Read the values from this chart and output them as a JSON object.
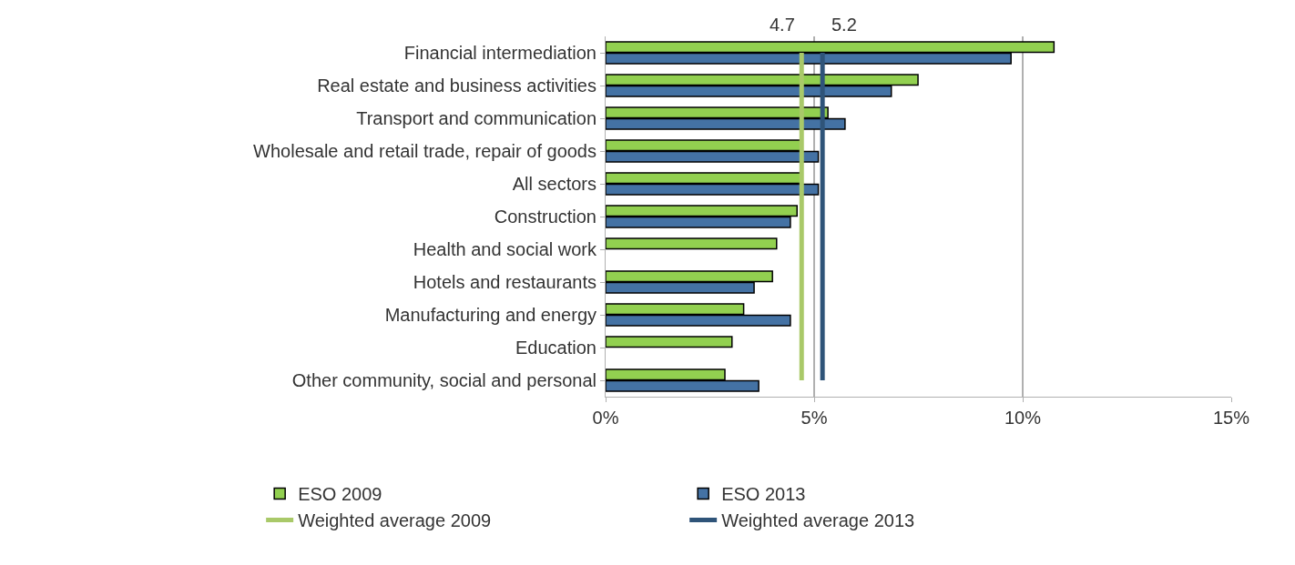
{
  "chart_data": {
    "type": "bar",
    "orientation": "horizontal",
    "categories": [
      "Financial intermediation",
      "Real estate and business activities",
      "Transport and communication",
      "Wholesale and retail trade, repair of goods",
      "All sectors",
      "Construction",
      "Health and social work",
      "Hotels and restaurants",
      "Manufacturing and energy",
      "Education",
      "Other community, social and personal"
    ],
    "series": [
      {
        "name": "ESO 2009",
        "color": "#92d050",
        "values": [
          10.75,
          7.49,
          5.33,
          4.7,
          4.7,
          4.59,
          4.1,
          4.0,
          3.31,
          3.03,
          2.86
        ]
      },
      {
        "name": "ESO 2013",
        "color": "#4472a4",
        "values": [
          9.72,
          6.85,
          5.74,
          5.1,
          5.1,
          4.43,
          null,
          3.56,
          4.43,
          null,
          3.67
        ]
      },
      {
        "name": "Weighted average 2009",
        "type": "line",
        "color": "#a9c969",
        "values": [
          4.7,
          4.7,
          4.7,
          4.7,
          4.7,
          4.7,
          4.7,
          4.7,
          4.7,
          4.7,
          4.7
        ]
      },
      {
        "name": "Weighted average 2013",
        "type": "line",
        "color": "#2f5479",
        "values": [
          5.2,
          5.2,
          5.2,
          5.2,
          5.2,
          5.2,
          5.2,
          5.2,
          5.2,
          5.2,
          5.2
        ]
      }
    ],
    "annotations": [
      "4.7",
      "5.2"
    ],
    "xlim": [
      0,
      15
    ],
    "xticks": [
      {
        "value": 0,
        "label": "0%"
      },
      {
        "value": 5,
        "label": "5%"
      },
      {
        "value": 10,
        "label": "10%"
      },
      {
        "value": 15,
        "label": "15%"
      }
    ],
    "grid": "x",
    "legend": "bottom"
  }
}
